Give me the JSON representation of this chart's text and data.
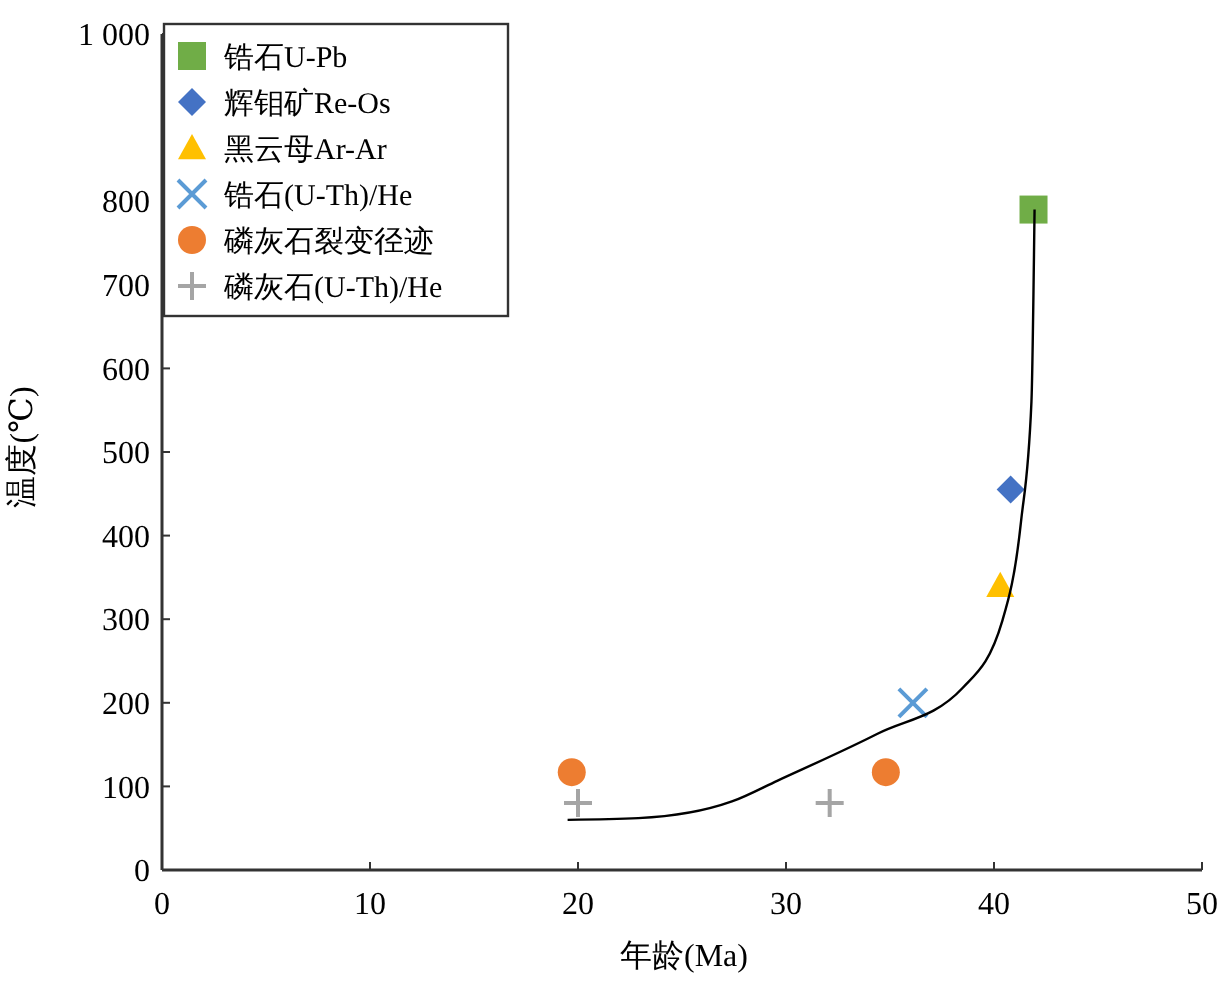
{
  "chart_data": {
    "type": "scatter",
    "xlabel": "年龄(Ma)",
    "ylabel": "温度(℃)",
    "xlim": [
      0,
      50
    ],
    "xticks": [
      0,
      10,
      20,
      30,
      40,
      50
    ],
    "ylim": [
      0,
      1000
    ],
    "yticks": [
      0,
      100,
      200,
      300,
      400,
      500,
      600,
      700,
      800,
      {
        "value": 1000,
        "label": "1 000"
      }
    ],
    "legend": "top left",
    "grid": false,
    "series": [
      {
        "name": "锆石U-Pb",
        "color": "#70ad47",
        "marker": "square",
        "x": [
          41.9
        ],
        "values": [
          790
        ]
      },
      {
        "name": "辉钼矿Re-Os",
        "color": "#4472c4",
        "marker": "diamond",
        "x": [
          40.8
        ],
        "values": [
          455
        ]
      },
      {
        "name": "黑云母Ar-Ar",
        "color": "#ffc000",
        "marker": "triangle",
        "x": [
          40.3
        ],
        "values": [
          340
        ]
      },
      {
        "name": "锆石(U-Th)/He",
        "color": "#5b9bd5",
        "marker": "cross",
        "x": [
          36.1
        ],
        "values": [
          200
        ]
      },
      {
        "name": "磷灰石裂变径迹",
        "color": "#ed7d31",
        "marker": "circle",
        "x": [
          19.7,
          34.8
        ],
        "values": [
          117,
          117
        ]
      },
      {
        "name": "磷灰石(U-Th)/He",
        "color": "#a5a5a5",
        "marker": "plus",
        "x": [
          20.0,
          32.1
        ],
        "values": [
          80,
          80
        ]
      },
      {
        "type": "line",
        "color": "#000000",
        "x": [
          19.5,
          22.9,
          27.4,
          29.6,
          34.4,
          38.5,
          40.4,
          41.3,
          41.8,
          41.95
        ],
        "values": [
          60,
          62,
          82,
          107,
          163,
          218,
          298,
          417,
          560,
          790
        ]
      }
    ]
  }
}
